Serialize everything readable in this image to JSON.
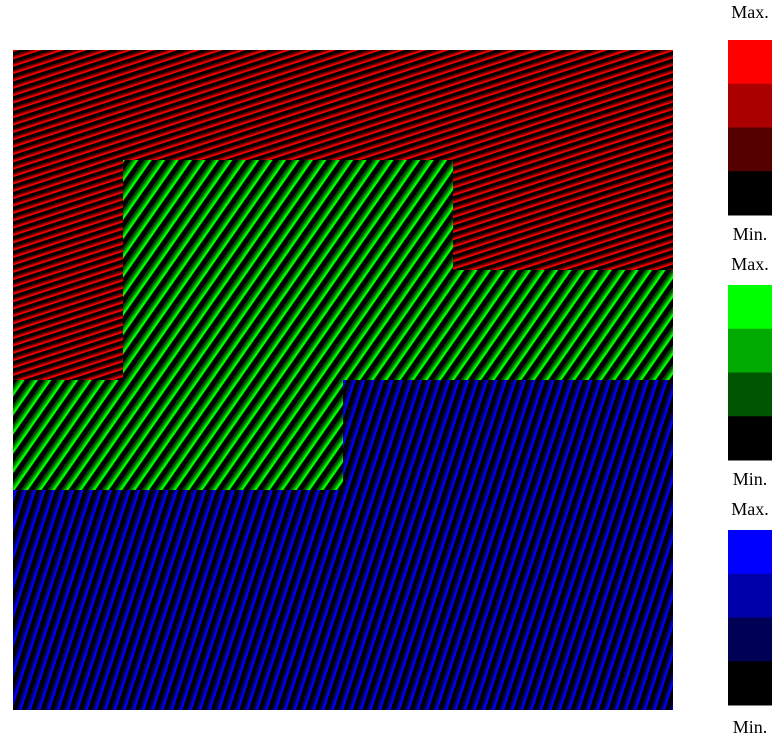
{
  "scales": [
    {
      "max_label": "Max.",
      "min_label": "Min.",
      "colors": [
        "#ff0000",
        "#aa0000",
        "#550000",
        "#000000"
      ]
    },
    {
      "max_label": "Max.",
      "min_label": "Min.",
      "colors": [
        "#00ff00",
        "#00aa00",
        "#005500",
        "#000000"
      ]
    },
    {
      "max_label": "Max.",
      "min_label": "Min.",
      "colors": [
        "#0000ff",
        "#0000aa",
        "#000055",
        "#000000"
      ]
    }
  ]
}
